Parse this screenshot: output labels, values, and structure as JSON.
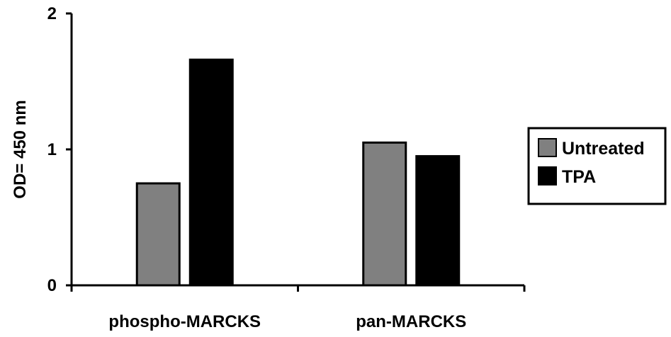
{
  "chart_data": {
    "type": "bar",
    "title": "",
    "xlabel": "",
    "ylabel": "OD= 450 nm",
    "ylim": [
      0,
      2
    ],
    "yticks": [
      0,
      1,
      2
    ],
    "categories": [
      "phospho-MARCKS",
      "pan-MARCKS"
    ],
    "series": [
      {
        "name": "Untreated",
        "color": "#808080",
        "values": [
          0.75,
          1.05
        ]
      },
      {
        "name": "TPA",
        "color": "#000000",
        "values": [
          1.66,
          0.95
        ]
      }
    ],
    "grid": false,
    "legend_position": "right"
  }
}
